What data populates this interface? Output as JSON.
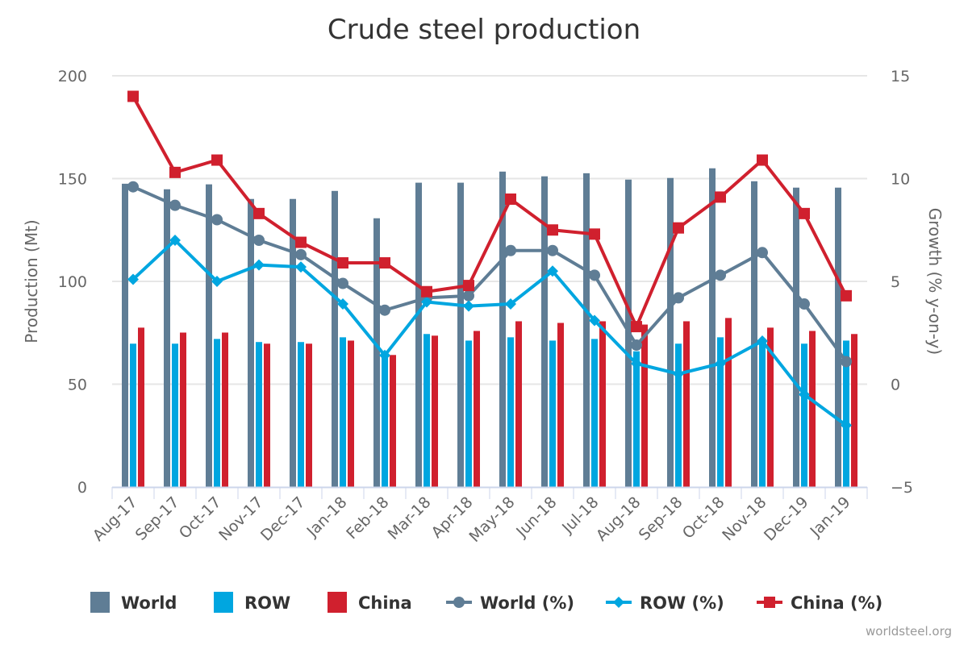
{
  "chart_data": {
    "type": "bar",
    "title": "Crude steel production",
    "credit": "worldsteel.org",
    "xlabel": "",
    "ylabel": "Production (Mt)",
    "y2label": "Growth (% y-on-y)",
    "ylim": [
      0,
      200
    ],
    "y2lim": [
      -5,
      15
    ],
    "yticks": [
      "0",
      "50",
      "100",
      "150",
      "200"
    ],
    "y2ticks": [
      "−5",
      "0",
      "5",
      "10",
      "15"
    ],
    "grid": true,
    "legend_position": "bottom",
    "categories": [
      "Aug-17",
      "Sep-17",
      "Oct-17",
      "Nov-17",
      "Dec-17",
      "Jan-18",
      "Feb-18",
      "Mar-18",
      "Apr-18",
      "May-18",
      "Jun-18",
      "Jul-18",
      "Aug-18",
      "Sep-18",
      "Oct-18",
      "Nov-18",
      "Dec-19",
      "Jan-19"
    ],
    "series": [
      {
        "name": "World",
        "type": "bar",
        "axis": "left",
        "color": "#5f7d95",
        "values": [
          147.5,
          144.8,
          147.2,
          140.1,
          140.1,
          144.0,
          130.7,
          148.0,
          148.0,
          153.4,
          151.1,
          152.6,
          149.5,
          150.3,
          155.0,
          148.7,
          145.6,
          145.6
        ]
      },
      {
        "name": "ROW",
        "type": "bar",
        "axis": "left",
        "color": "#00a6e0",
        "values": [
          69.7,
          69.7,
          72.0,
          70.5,
          70.5,
          72.8,
          64.0,
          74.4,
          71.2,
          72.8,
          71.2,
          72.0,
          66.0,
          69.7,
          72.8,
          70.0,
          69.7,
          71.2
        ]
      },
      {
        "name": "China",
        "type": "bar",
        "axis": "left",
        "color": "#d0202e",
        "values": [
          77.5,
          75.1,
          75.1,
          69.7,
          69.7,
          71.2,
          64.2,
          73.6,
          75.9,
          80.6,
          79.8,
          80.6,
          79.0,
          80.6,
          82.2,
          77.5,
          75.9,
          74.4
        ]
      },
      {
        "name": "World (%)",
        "type": "line",
        "marker": "circle",
        "axis": "right",
        "color": "#5f7d95",
        "values": [
          9.6,
          8.7,
          8.0,
          7.0,
          6.3,
          4.9,
          3.6,
          4.2,
          4.3,
          6.5,
          6.5,
          5.3,
          1.9,
          4.2,
          5.3,
          6.4,
          3.9,
          1.1
        ]
      },
      {
        "name": "ROW (%)",
        "type": "line",
        "marker": "diamond",
        "axis": "right",
        "color": "#00a6e0",
        "values": [
          5.1,
          7.0,
          5.0,
          5.8,
          5.7,
          3.9,
          1.4,
          4.0,
          3.8,
          3.9,
          5.5,
          3.1,
          1.0,
          0.5,
          1.0,
          2.1,
          -0.5,
          -2.0
        ]
      },
      {
        "name": "China (%)",
        "type": "line",
        "marker": "square",
        "axis": "right",
        "color": "#d0202e",
        "values": [
          14.0,
          10.3,
          10.9,
          8.3,
          6.9,
          5.9,
          5.9,
          4.5,
          4.8,
          9.0,
          7.5,
          7.3,
          2.8,
          7.6,
          9.1,
          10.9,
          8.3,
          4.3
        ]
      }
    ]
  }
}
